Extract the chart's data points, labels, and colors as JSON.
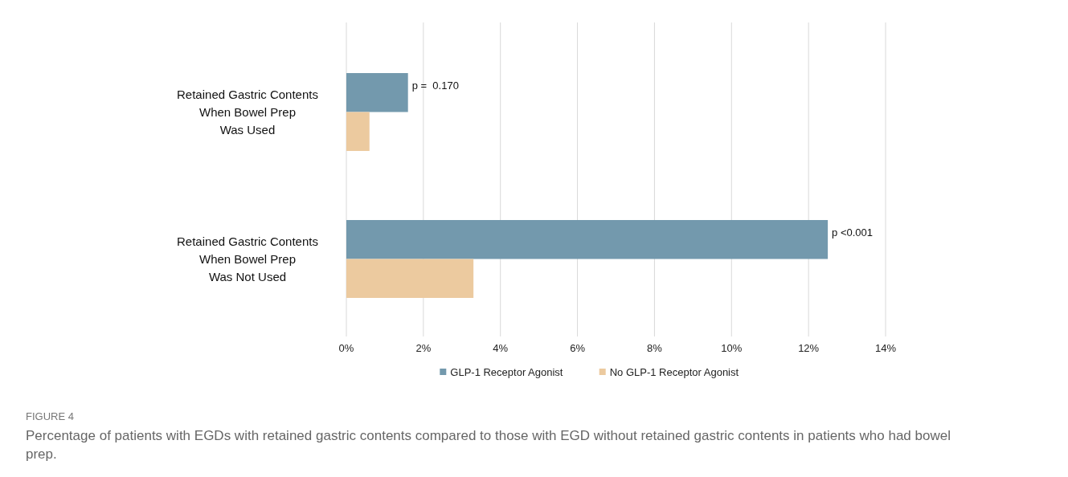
{
  "chart_data": {
    "type": "bar",
    "orientation": "horizontal",
    "categories": [
      "Retained Gastric Contents\nWhen Bowel Prep\nWas Used",
      "Retained Gastric Contents\nWhen Bowel Prep\nWas Not Used"
    ],
    "series": [
      {
        "name": "GLP-1 Receptor Agonist",
        "color": "#7399ad",
        "values": [
          1.6,
          12.5
        ]
      },
      {
        "name": "No GLP-1 Receptor Agonist",
        "color": "#ecca9f",
        "values": [
          0.6,
          3.3
        ]
      }
    ],
    "xlim": [
      0,
      14
    ],
    "xticks": [
      {
        "value": 0,
        "label": "0%"
      },
      {
        "value": 2,
        "label": "2%"
      },
      {
        "value": 4,
        "label": "4%"
      },
      {
        "value": 6,
        "label": "6%"
      },
      {
        "value": 8,
        "label": "8%"
      },
      {
        "value": 10,
        "label": "10%"
      },
      {
        "value": 12,
        "label": "12%"
      },
      {
        "value": 14,
        "label": "14%"
      }
    ],
    "grid": "x",
    "legend": "bottom",
    "annotations": [
      {
        "text": "p =  0.170",
        "x": 1.6,
        "y": "Retained Gastric Contents\nWhen Bowel Prep\nWas Used"
      },
      {
        "text": "p <0.001",
        "x": 12.5,
        "y": "Retained Gastric Contents\nWhen Bowel Prep\nWas Not Used"
      },
      "FIGURE 4",
      "Percentage of patients with EGDs with retained gastric contents compared to those with EGD without retained gastric contents in patients who had bowel prep."
    ]
  }
}
